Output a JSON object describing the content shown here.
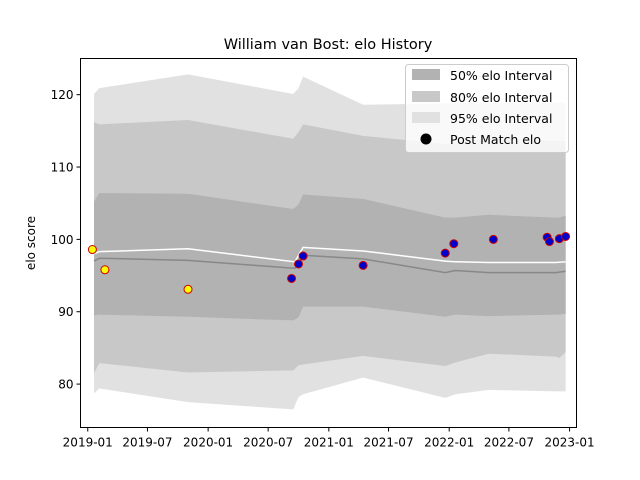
{
  "chart_data": {
    "type": "line",
    "title": "William van Bost: elo History",
    "ylabel": "elo score",
    "xlabel": "",
    "ylim": [
      74,
      125
    ],
    "xlim": [
      "2018-12-10",
      "2023-01-22"
    ],
    "x_ticks": [
      "2019-01",
      "2019-07",
      "2020-01",
      "2020-07",
      "2021-01",
      "2021-07",
      "2022-01",
      "2022-07",
      "2023-01"
    ],
    "y_ticks": [
      80,
      90,
      100,
      110,
      120
    ],
    "grid": false,
    "legend_position": "top-right",
    "legend": [
      {
        "label": "50% elo Interval",
        "kind": "patch",
        "color": "#b2b2b2"
      },
      {
        "label": "80% elo Interval",
        "kind": "patch",
        "color": "#c8c8c8"
      },
      {
        "label": "95% elo Interval",
        "kind": "patch",
        "color": "#e1e1e1"
      },
      {
        "label": "Post Match elo",
        "kind": "marker",
        "color": "#000000"
      }
    ],
    "band_x": [
      "2019-01-20",
      "2019-02-05",
      "2019-11-01",
      "2020-09-15",
      "2020-10-01",
      "2020-10-15",
      "2021-04-15",
      "2021-12-20",
      "2022-01-20",
      "2022-05-01",
      "2022-11-20",
      "2022-12-01",
      "2022-12-20"
    ],
    "interval_95": {
      "upper": [
        120.1,
        120.9,
        122.8,
        120.1,
        120.9,
        122.5,
        118.6,
        118.8,
        118.9,
        118.9,
        118.9,
        118.9,
        118.9
      ],
      "lower": [
        78.7,
        79.4,
        77.5,
        76.5,
        78.2,
        78.6,
        80.9,
        78.1,
        78.6,
        79.2,
        79.0,
        79.0,
        79.0
      ]
    },
    "interval_80": {
      "upper": [
        116.2,
        115.9,
        116.5,
        113.9,
        114.8,
        115.9,
        114.3,
        113.2,
        113.4,
        113.9,
        113.6,
        113.6,
        113.6
      ],
      "lower": [
        81.5,
        82.9,
        81.6,
        81.9,
        82.6,
        82.7,
        83.9,
        82.5,
        83.0,
        84.2,
        83.8,
        83.6,
        84.4
      ]
    },
    "interval_50": {
      "upper": [
        105.2,
        106.4,
        106.3,
        104.2,
        104.8,
        106.2,
        105.6,
        103.0,
        103.0,
        103.4,
        103.0,
        103.0,
        103.3
      ],
      "lower": [
        89.5,
        89.6,
        89.3,
        88.8,
        89.2,
        90.7,
        90.7,
        89.3,
        89.6,
        89.4,
        89.6,
        89.6,
        89.7
      ]
    },
    "series": [
      {
        "kind": "line",
        "color": "#ffffff",
        "x": [
          "2019-01-20",
          "2019-02-05",
          "2019-11-01",
          "2020-09-20",
          "2020-10-15",
          "2021-04-15",
          "2021-12-20",
          "2022-01-20",
          "2022-05-01",
          "2022-11-20",
          "2022-12-20"
        ],
        "values": [
          98.0,
          98.3,
          98.7,
          96.9,
          98.9,
          98.4,
          97.0,
          96.9,
          96.8,
          96.8,
          96.9
        ]
      },
      {
        "kind": "line",
        "color": "#888888",
        "x": [
          "2019-01-20",
          "2019-02-05",
          "2019-11-01",
          "2020-09-20",
          "2020-10-15",
          "2021-04-15",
          "2021-12-20",
          "2022-01-20",
          "2022-05-01",
          "2022-11-20",
          "2022-12-20"
        ],
        "values": [
          97.0,
          97.4,
          97.1,
          96.0,
          97.8,
          97.3,
          95.4,
          95.7,
          95.4,
          95.4,
          95.6
        ]
      },
      {
        "name": "Post Match elo",
        "kind": "scatter",
        "points": [
          {
            "x": "2019-01-15",
            "y": 98.6,
            "fill": "#ffff00",
            "edge": "#cc0000"
          },
          {
            "x": "2019-02-22",
            "y": 95.8,
            "fill": "#ffff00",
            "edge": "#cc0000"
          },
          {
            "x": "2019-11-01",
            "y": 93.1,
            "fill": "#ffff00",
            "edge": "#cc0000"
          },
          {
            "x": "2020-09-10",
            "y": 94.6,
            "fill": "#0000cc",
            "edge": "#cc0000"
          },
          {
            "x": "2020-10-01",
            "y": 96.6,
            "fill": "#0000cc",
            "edge": "#cc0000"
          },
          {
            "x": "2020-10-15",
            "y": 97.7,
            "fill": "#0000cc",
            "edge": "#cc0000"
          },
          {
            "x": "2021-04-15",
            "y": 96.4,
            "fill": "#0000cc",
            "edge": "#cc0000"
          },
          {
            "x": "2021-12-20",
            "y": 98.1,
            "fill": "#0000cc",
            "edge": "#cc0000"
          },
          {
            "x": "2022-01-15",
            "y": 99.4,
            "fill": "#0000cc",
            "edge": "#cc0000"
          },
          {
            "x": "2022-05-15",
            "y": 100.0,
            "fill": "#0000cc",
            "edge": "#cc0000"
          },
          {
            "x": "2022-10-25",
            "y": 100.3,
            "fill": "#0000cc",
            "edge": "#cc0000"
          },
          {
            "x": "2022-11-01",
            "y": 99.7,
            "fill": "#0000cc",
            "edge": "#cc0000"
          },
          {
            "x": "2022-12-01",
            "y": 100.1,
            "fill": "#0000cc",
            "edge": "#cc0000"
          },
          {
            "x": "2022-12-20",
            "y": 100.4,
            "fill": "#0000cc",
            "edge": "#cc0000"
          }
        ]
      }
    ]
  }
}
